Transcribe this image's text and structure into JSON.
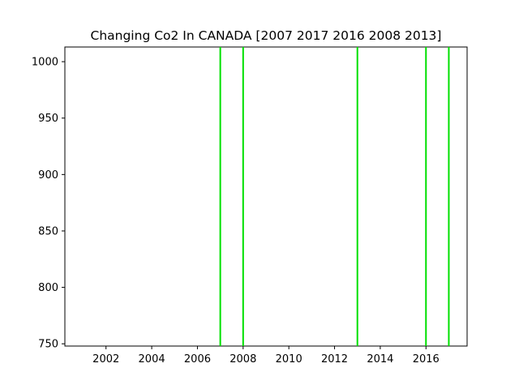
{
  "chart_data": {
    "type": "vline",
    "title": "Changing Co2 In CANADA [2007 2017 2016 2008 2013]",
    "xlabel": "",
    "ylabel": "",
    "xlim": [
      2000.2,
      2017.8
    ],
    "ylim": [
      748,
      1013
    ],
    "x_ticks": [
      2002,
      2004,
      2006,
      2008,
      2010,
      2012,
      2014,
      2016
    ],
    "y_ticks": [
      750,
      800,
      850,
      900,
      950,
      1000
    ],
    "lines": [
      {
        "x": 2007
      },
      {
        "x": 2017
      },
      {
        "x": 2016
      },
      {
        "x": 2008
      },
      {
        "x": 2013
      }
    ],
    "line_color": "#00e000",
    "grid": false,
    "legend": "none"
  }
}
